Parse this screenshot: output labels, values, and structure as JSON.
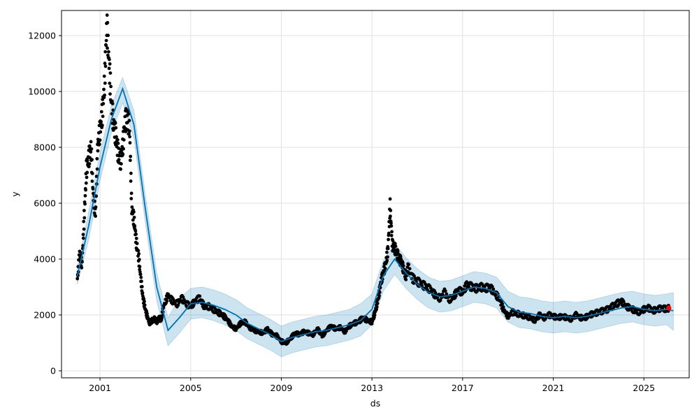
{
  "chart_data": {
    "type": "line",
    "title": "",
    "xlabel": "ds",
    "ylabel": "y",
    "xlim": [
      1999.3,
      2027.0
    ],
    "ylim": [
      -250,
      12900
    ],
    "grid": true,
    "x_ticks": [
      {
        "label": "2001",
        "value": 2001
      },
      {
        "label": "2005",
        "value": 2005
      },
      {
        "label": "2009",
        "value": 2009
      },
      {
        "label": "2013",
        "value": 2013
      },
      {
        "label": "2017",
        "value": 2017
      },
      {
        "label": "2021",
        "value": 2021
      },
      {
        "label": "2025",
        "value": 2025
      }
    ],
    "y_ticks": [
      {
        "label": "0",
        "value": 0
      },
      {
        "label": "2000",
        "value": 2000
      },
      {
        "label": "4000",
        "value": 4000
      },
      {
        "label": "6000",
        "value": 6000
      },
      {
        "label": "8000",
        "value": 8000
      },
      {
        "label": "10000",
        "value": 10000
      },
      {
        "label": "12000",
        "value": 12000
      }
    ],
    "colors": {
      "forecast": "#0072B2",
      "interval": "#0072B2",
      "observed": "#000000",
      "highlight": "#ff0000",
      "grid": "#e0e0e0"
    },
    "series": [
      {
        "role": "forecast",
        "x": [
          2000.0,
          2000.5,
          2001.0,
          2001.5,
          2002.0,
          2002.5,
          2003.0,
          2003.5,
          2004.0,
          2004.5,
          2005.0,
          2005.5,
          2006.0,
          2006.5,
          2007.0,
          2007.5,
          2008.0,
          2008.5,
          2009.0,
          2009.5,
          2010.0,
          2010.5,
          2011.0,
          2011.5,
          2012.0,
          2012.5,
          2013.0,
          2013.5,
          2014.0,
          2014.5,
          2015.0,
          2015.5,
          2016.0,
          2016.5,
          2017.0,
          2017.5,
          2018.0,
          2018.5,
          2019.0,
          2019.5,
          2020.0,
          2020.5,
          2021.0,
          2021.5,
          2022.0,
          2022.5,
          2023.0,
          2023.5,
          2024.0,
          2024.5,
          2025.0,
          2025.5,
          2026.0,
          2026.3
        ],
        "y": [
          3400,
          5200,
          7300,
          9000,
          10100,
          8800,
          5800,
          3000,
          1450,
          1900,
          2400,
          2450,
          2350,
          2200,
          2000,
          1700,
          1500,
          1300,
          1050,
          1200,
          1300,
          1400,
          1450,
          1550,
          1650,
          1800,
          2200,
          3400,
          4000,
          3500,
          3100,
          2800,
          2650,
          2700,
          2850,
          3000,
          2950,
          2800,
          2300,
          2100,
          2050,
          1950,
          1900,
          1950,
          1900,
          1950,
          2050,
          2150,
          2250,
          2300,
          2200,
          2150,
          2200,
          2150
        ]
      },
      {
        "role": "forecast_upper",
        "x": [
          2000.0,
          2000.5,
          2001.0,
          2001.5,
          2002.0,
          2002.5,
          2003.0,
          2003.5,
          2004.0,
          2004.5,
          2005.0,
          2005.5,
          2006.0,
          2006.5,
          2007.0,
          2007.5,
          2008.0,
          2008.5,
          2009.0,
          2009.5,
          2010.0,
          2010.5,
          2011.0,
          2011.5,
          2012.0,
          2012.5,
          2013.0,
          2013.5,
          2014.0,
          2014.5,
          2015.0,
          2015.5,
          2016.0,
          2016.5,
          2017.0,
          2017.5,
          2018.0,
          2018.5,
          2019.0,
          2019.5,
          2020.0,
          2020.5,
          2021.0,
          2021.5,
          2022.0,
          2022.5,
          2023.0,
          2023.5,
          2024.0,
          2024.5,
          2025.0,
          2025.5,
          2026.0,
          2026.3
        ],
        "y": [
          3700,
          5700,
          7800,
          9500,
          10500,
          9300,
          6300,
          3500,
          1900,
          2600,
          2950,
          3000,
          2900,
          2750,
          2550,
          2250,
          2050,
          1850,
          1600,
          1750,
          1850,
          1950,
          2000,
          2100,
          2200,
          2400,
          2750,
          3950,
          4550,
          4050,
          3650,
          3350,
          3200,
          3250,
          3400,
          3550,
          3500,
          3350,
          2850,
          2650,
          2600,
          2500,
          2450,
          2500,
          2450,
          2500,
          2600,
          2700,
          2800,
          2850,
          2750,
          2700,
          2750,
          2800
        ]
      },
      {
        "role": "forecast_lower",
        "x": [
          2000.0,
          2000.5,
          2001.0,
          2001.5,
          2002.0,
          2002.5,
          2003.0,
          2003.5,
          2004.0,
          2004.5,
          2005.0,
          2005.5,
          2006.0,
          2006.5,
          2007.0,
          2007.5,
          2008.0,
          2008.5,
          2009.0,
          2009.5,
          2010.0,
          2010.5,
          2011.0,
          2011.5,
          2012.0,
          2012.5,
          2013.0,
          2013.5,
          2014.0,
          2014.5,
          2015.0,
          2015.5,
          2016.0,
          2016.5,
          2017.0,
          2017.5,
          2018.0,
          2018.5,
          2019.0,
          2019.5,
          2020.0,
          2020.5,
          2021.0,
          2021.5,
          2022.0,
          2022.5,
          2023.0,
          2023.5,
          2024.0,
          2024.5,
          2025.0,
          2025.5,
          2026.0,
          2026.3
        ],
        "y": [
          3100,
          4700,
          6800,
          8500,
          9600,
          8300,
          5300,
          2500,
          900,
          1350,
          1850,
          1900,
          1800,
          1650,
          1450,
          1150,
          950,
          750,
          500,
          650,
          750,
          850,
          900,
          1000,
          1100,
          1250,
          1650,
          2850,
          3450,
          2950,
          2550,
          2250,
          2100,
          2150,
          2300,
          2450,
          2400,
          2250,
          1750,
          1550,
          1500,
          1400,
          1350,
          1400,
          1350,
          1400,
          1500,
          1600,
          1700,
          1750,
          1650,
          1600,
          1650,
          1450
        ]
      },
      {
        "role": "observed",
        "x": [
          2000.0,
          2000.1,
          2000.2,
          2000.3,
          2000.4,
          2000.5,
          2000.6,
          2000.7,
          2000.8,
          2000.9,
          2001.0,
          2001.1,
          2001.2,
          2001.3,
          2001.4,
          2001.5,
          2001.6,
          2001.7,
          2001.8,
          2001.9,
          2002.0,
          2002.1,
          2002.2,
          2002.3,
          2002.4,
          2002.5,
          2002.6,
          2002.7,
          2002.8,
          2002.9,
          2003.0,
          2003.1,
          2003.2,
          2003.3,
          2003.4,
          2003.5,
          2003.6,
          2003.7,
          2003.8,
          2004.0,
          2004.2,
          2004.4,
          2004.6,
          2004.8,
          2005.0,
          2005.2,
          2005.4,
          2005.6,
          2005.8,
          2006.0,
          2006.2,
          2006.4,
          2006.6,
          2006.8,
          2007.0,
          2007.2,
          2007.4,
          2007.6,
          2007.8,
          2008.0,
          2008.2,
          2008.4,
          2008.6,
          2008.8,
          2009.0,
          2009.2,
          2009.4,
          2009.6,
          2009.8,
          2010.0,
          2010.2,
          2010.4,
          2010.6,
          2010.8,
          2011.0,
          2011.2,
          2011.4,
          2011.6,
          2011.8,
          2012.0,
          2012.2,
          2012.4,
          2012.6,
          2012.8,
          2013.0,
          2013.1,
          2013.2,
          2013.3,
          2013.4,
          2013.5,
          2013.6,
          2013.7,
          2013.8,
          2013.9,
          2014.0,
          2014.1,
          2014.2,
          2014.3,
          2014.4,
          2014.5,
          2014.6,
          2014.8,
          2015.0,
          2015.2,
          2015.4,
          2015.6,
          2015.8,
          2016.0,
          2016.2,
          2016.4,
          2016.6,
          2016.8,
          2017.0,
          2017.2,
          2017.4,
          2017.6,
          2017.8,
          2018.0,
          2018.2,
          2018.4,
          2018.6,
          2018.8,
          2019.0,
          2019.2,
          2019.4,
          2019.6,
          2019.8,
          2020.0,
          2020.2,
          2020.4,
          2020.6,
          2020.8,
          2021.0,
          2021.2,
          2021.4,
          2021.6,
          2021.8,
          2022.0,
          2022.2,
          2022.4,
          2022.6,
          2022.8,
          2023.0,
          2023.2,
          2023.4,
          2023.6,
          2023.8,
          2024.0,
          2024.2,
          2024.4,
          2024.6,
          2024.8,
          2025.0,
          2025.2,
          2025.4,
          2025.6,
          2025.8,
          2026.0,
          2026.1
        ],
        "y": [
          3300,
          4200,
          3800,
          5500,
          7200,
          7600,
          8000,
          6300,
          5600,
          8100,
          8600,
          9200,
          10300,
          12400,
          11000,
          9600,
          8800,
          8400,
          7800,
          7500,
          8000,
          8900,
          9100,
          8700,
          5800,
          5400,
          4600,
          4100,
          3300,
          2600,
          2200,
          1900,
          1700,
          1800,
          1850,
          1750,
          1900,
          1800,
          2300,
          2700,
          2500,
          2400,
          2600,
          2400,
          2300,
          2500,
          2600,
          2300,
          2300,
          2200,
          2100,
          2000,
          1850,
          1600,
          1500,
          1700,
          1750,
          1550,
          1450,
          1400,
          1350,
          1500,
          1300,
          1250,
          1050,
          1000,
          1150,
          1350,
          1300,
          1400,
          1350,
          1300,
          1500,
          1250,
          1450,
          1600,
          1500,
          1550,
          1400,
          1600,
          1700,
          1750,
          1900,
          1800,
          1750,
          2000,
          2300,
          2700,
          3200,
          3500,
          3800,
          4300,
          5900,
          4500,
          4400,
          4200,
          4000,
          3900,
          3600,
          3400,
          3700,
          3300,
          3200,
          3100,
          3000,
          2900,
          2700,
          2600,
          2800,
          2550,
          2650,
          2900,
          2800,
          3100,
          3000,
          2950,
          3000,
          2950,
          3000,
          2800,
          2600,
          2200,
          1950,
          2100,
          2050,
          2000,
          1950,
          1900,
          1800,
          2000,
          1900,
          2000,
          1950,
          1900,
          1950,
          1900,
          1850,
          2000,
          1900,
          1900,
          2000,
          2050,
          2100,
          2150,
          2200,
          2300,
          2400,
          2500,
          2300,
          2250,
          2150,
          2100,
          2200,
          2250,
          2150,
          2200,
          2250,
          2200,
          2250
        ]
      },
      {
        "role": "highlight",
        "x": [
          2026.1
        ],
        "y": [
          2250
        ]
      }
    ]
  }
}
